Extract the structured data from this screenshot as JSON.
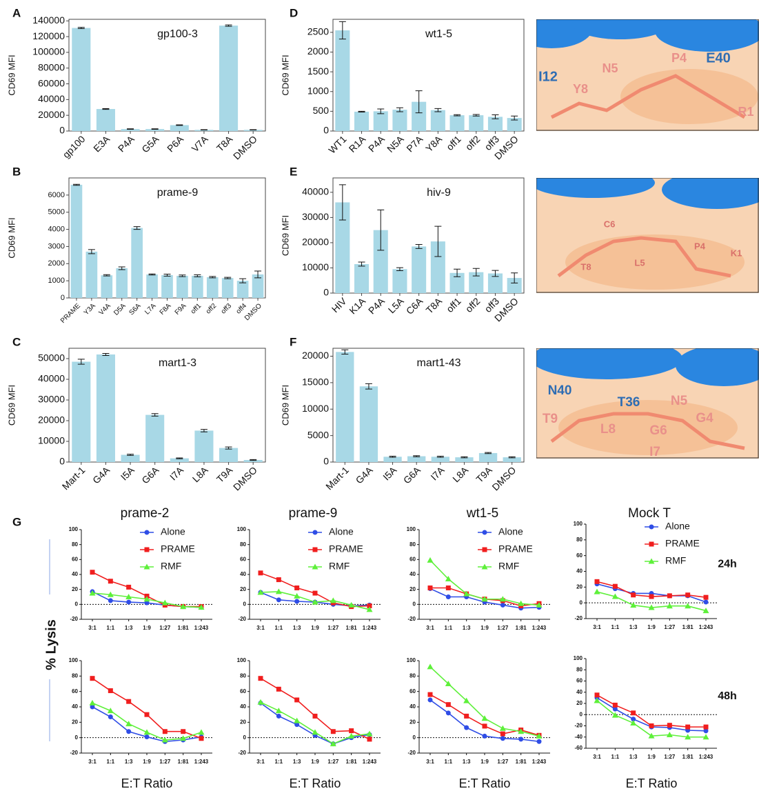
{
  "ylabel": "% Lysis",
  "structures": [
    {
      "labels": [
        {
          "text": "I12",
          "color": "#2f6db3"
        },
        {
          "text": "Y8",
          "color": "#e9908a"
        },
        {
          "text": "N5",
          "color": "#e9908a"
        },
        {
          "text": "P4",
          "color": "#e9908a"
        },
        {
          "text": "E40",
          "color": "#2f6db3"
        },
        {
          "text": "R1",
          "color": "#e9908a"
        }
      ]
    },
    {
      "labels": [
        {
          "text": "C6",
          "color": "#d9706a"
        },
        {
          "text": "P4",
          "color": "#d9706a"
        },
        {
          "text": "T8",
          "color": "#d9706a"
        },
        {
          "text": "L5",
          "color": "#d9706a"
        },
        {
          "text": "K1",
          "color": "#d9706a"
        }
      ]
    },
    {
      "labels": [
        {
          "text": "N40",
          "color": "#2f6db3"
        },
        {
          "text": "T36",
          "color": "#2f6db3"
        },
        {
          "text": "N5",
          "color": "#e9908a"
        },
        {
          "text": "T9",
          "color": "#e9908a"
        },
        {
          "text": "L8",
          "color": "#e9908a"
        },
        {
          "text": "G6",
          "color": "#e9908a"
        },
        {
          "text": "G4",
          "color": "#e9908a"
        },
        {
          "text": "I7",
          "color": "#e9908a"
        }
      ]
    }
  ],
  "chart_data": [
    {
      "type": "bar",
      "panel": "A",
      "title": "gp100-3",
      "ylabel": "CD69 MFI",
      "color": "#a8d8e6",
      "categories": [
        "gp100",
        "E3A",
        "P4A",
        "G5A",
        "P6A",
        "V7A",
        "T8A",
        "DMSO"
      ],
      "values": [
        131000,
        28000,
        2500,
        2500,
        7500,
        1500,
        134000,
        1500
      ],
      "errors": [
        800,
        500,
        300,
        300,
        400,
        200,
        900,
        200
      ],
      "ylim": [
        0,
        142000
      ],
      "yticks": [
        0,
        20000,
        40000,
        60000,
        80000,
        100000,
        120000,
        140000
      ]
    },
    {
      "type": "bar",
      "panel": "B",
      "title": "prame-9",
      "ylabel": "CD69 MFI",
      "color": "#a8d8e6",
      "categories": [
        "PRAME",
        "Y3A",
        "V4A",
        "D5A",
        "S6A",
        "L7A",
        "F8A",
        "F9A",
        "off1",
        "off2",
        "off3",
        "off4",
        "DMSO"
      ],
      "values": [
        6600,
        2700,
        1320,
        1730,
        4080,
        1370,
        1330,
        1290,
        1290,
        1210,
        1160,
        1000,
        1370
      ],
      "errors": [
        30,
        120,
        40,
        80,
        80,
        30,
        60,
        50,
        60,
        40,
        40,
        120,
        200
      ],
      "ylim": [
        0,
        7000
      ],
      "yticks": [
        0,
        1000,
        2000,
        3000,
        4000,
        5000,
        6000
      ]
    },
    {
      "type": "bar",
      "panel": "C",
      "title": "mart1-3",
      "ylabel": "CD69 MFI",
      "color": "#a8d8e6",
      "categories": [
        "Mart-1",
        "G4A",
        "I5A",
        "G6A",
        "I7A",
        "L8A",
        "T9A",
        "DMSO"
      ],
      "values": [
        48500,
        52000,
        3500,
        22800,
        1800,
        15200,
        6800,
        1000
      ],
      "errors": [
        1200,
        500,
        300,
        600,
        200,
        600,
        500,
        200
      ],
      "ylim": [
        0,
        55000
      ],
      "yticks": [
        0,
        10000,
        20000,
        30000,
        40000,
        50000
      ]
    },
    {
      "type": "bar",
      "panel": "D",
      "title": "wt1-5",
      "ylabel": "CD69 MFI",
      "color": "#a8d8e6",
      "categories": [
        "WT1",
        "R1A",
        "P4A",
        "N5A",
        "P7A",
        "Y8A",
        "off1",
        "off2",
        "off3",
        "DMSO"
      ],
      "values": [
        2550,
        490,
        500,
        540,
        740,
        530,
        400,
        400,
        360,
        330
      ],
      "errors": [
        220,
        10,
        60,
        50,
        280,
        40,
        15,
        20,
        50,
        50
      ],
      "ylim": [
        0,
        2830
      ],
      "yticks": [
        0,
        500,
        1000,
        1500,
        2000,
        2500
      ]
    },
    {
      "type": "bar",
      "panel": "E",
      "title": "hiv-9",
      "ylabel": "CD69 MFI",
      "color": "#a8d8e6",
      "categories": [
        "HIV",
        "K1A",
        "P4A",
        "L5A",
        "C6A",
        "T8A",
        "off1",
        "off2",
        "off3",
        "DMSO"
      ],
      "values": [
        36000,
        11500,
        25000,
        9500,
        18500,
        20500,
        8000,
        8300,
        7800,
        6000
      ],
      "errors": [
        7000,
        800,
        8000,
        600,
        800,
        6000,
        1500,
        1500,
        1200,
        2000
      ],
      "ylim": [
        0,
        45700
      ],
      "yticks": [
        0,
        10000,
        20000,
        30000,
        40000
      ]
    },
    {
      "type": "bar",
      "panel": "F",
      "title": "mart1-43",
      "ylabel": "CD69 MFI",
      "color": "#a8d8e6",
      "categories": [
        "Mart-1",
        "G4A",
        "I5A",
        "G6A",
        "I7A",
        "L8A",
        "T9A",
        "DMSO"
      ],
      "values": [
        20800,
        14300,
        1000,
        1100,
        1000,
        900,
        1700,
        900
      ],
      "errors": [
        400,
        500,
        100,
        100,
        100,
        100,
        100,
        100
      ],
      "ylim": [
        0,
        21500
      ],
      "yticks": [
        0,
        5000,
        10000,
        15000,
        20000
      ]
    },
    {
      "type": "line",
      "panel": "G",
      "title": "prame-2",
      "legend": true,
      "categories": [
        "3:1",
        "1:1",
        "1:3",
        "1:9",
        "1:27",
        "1:81",
        "1:243"
      ],
      "ylim": [
        -20,
        100
      ],
      "yticks": [
        -20,
        0,
        20,
        40,
        60,
        80,
        100
      ],
      "series": [
        {
          "name": "Alone",
          "color": "#2f4de6",
          "marker": "circle",
          "values": [
            17,
            5,
            3,
            2,
            -1,
            -3,
            -4
          ]
        },
        {
          "name": "PRAME",
          "color": "#f01e1e",
          "marker": "square",
          "values": [
            43,
            31,
            23,
            11,
            -1,
            -3,
            -3
          ]
        },
        {
          "name": "RMF",
          "color": "#5ef03a",
          "marker": "triangle",
          "values": [
            15,
            13,
            10,
            7,
            2,
            -3,
            -4
          ]
        }
      ]
    },
    {
      "type": "line",
      "title": "prame-9",
      "legend": true,
      "categories": [
        "3:1",
        "1:1",
        "1:3",
        "1:9",
        "1:27",
        "1:81",
        "1:243"
      ],
      "ylim": [
        -20,
        100
      ],
      "yticks": [
        -20,
        0,
        20,
        40,
        60,
        80,
        100
      ],
      "series": [
        {
          "name": "Alone",
          "color": "#2f4de6",
          "marker": "circle",
          "values": [
            16,
            6,
            4,
            3,
            0,
            -2,
            -1
          ]
        },
        {
          "name": "PRAME",
          "color": "#f01e1e",
          "marker": "square",
          "values": [
            42,
            33,
            22,
            15,
            2,
            -3,
            -2
          ]
        },
        {
          "name": "RMF",
          "color": "#5ef03a",
          "marker": "triangle",
          "values": [
            16,
            17,
            11,
            3,
            5,
            -1,
            -7
          ]
        }
      ]
    },
    {
      "type": "line",
      "title": "wt1-5",
      "legend": true,
      "categories": [
        "3:1",
        "1:1",
        "1:3",
        "1:9",
        "1:27",
        "1:81",
        "1:243"
      ],
      "ylim": [
        -20,
        100
      ],
      "yticks": [
        -20,
        0,
        20,
        40,
        60,
        80,
        100
      ],
      "series": [
        {
          "name": "Alone",
          "color": "#2f4de6",
          "marker": "circle",
          "values": [
            21,
            10,
            10,
            3,
            -1,
            -5,
            -4
          ]
        },
        {
          "name": "PRAME",
          "color": "#f01e1e",
          "marker": "square",
          "values": [
            22,
            22,
            14,
            7,
            5,
            -2,
            1
          ]
        },
        {
          "name": "RMF",
          "color": "#5ef03a",
          "marker": "triangle",
          "values": [
            59,
            34,
            14,
            7,
            7,
            1,
            -1
          ]
        }
      ]
    },
    {
      "type": "line",
      "title": "Mock T",
      "legend": true,
      "row_label": "24h",
      "categories": [
        "3:1",
        "1:1",
        "1:3",
        "1:9",
        "1:27",
        "1:81",
        "1:243"
      ],
      "ylim": [
        -20,
        100
      ],
      "yticks": [
        -20,
        0,
        20,
        40,
        60,
        80,
        100
      ],
      "series": [
        {
          "name": "Alone",
          "color": "#2f4de6",
          "marker": "circle",
          "values": [
            24,
            18,
            12,
            12,
            9,
            9,
            1
          ]
        },
        {
          "name": "PRAME",
          "color": "#f01e1e",
          "marker": "square",
          "values": [
            27,
            21,
            10,
            8,
            9,
            10,
            7
          ]
        },
        {
          "name": "RMF",
          "color": "#5ef03a",
          "marker": "triangle",
          "values": [
            14,
            8,
            -3,
            -6,
            -4,
            -4,
            -10
          ]
        }
      ]
    },
    {
      "type": "line",
      "x_label": "E:T Ratio",
      "categories": [
        "3:1",
        "1:1",
        "1:3",
        "1:9",
        "1:27",
        "1:81",
        "1:243"
      ],
      "ylim": [
        -20,
        100
      ],
      "yticks": [
        -20,
        0,
        20,
        40,
        60,
        80,
        100
      ],
      "series": [
        {
          "name": "Alone",
          "color": "#2f4de6",
          "marker": "circle",
          "values": [
            40,
            27,
            8,
            1,
            -5,
            -3,
            1
          ]
        },
        {
          "name": "PRAME",
          "color": "#f01e1e",
          "marker": "square",
          "values": [
            77,
            61,
            47,
            30,
            8,
            8,
            -1
          ]
        },
        {
          "name": "RMF",
          "color": "#5ef03a",
          "marker": "triangle",
          "values": [
            45,
            35,
            18,
            7,
            -3,
            -1,
            7
          ]
        }
      ]
    },
    {
      "type": "line",
      "x_label": "E:T Ratio",
      "categories": [
        "3:1",
        "1:1",
        "1:3",
        "1:9",
        "1:27",
        "1:81",
        "1:243"
      ],
      "ylim": [
        -20,
        100
      ],
      "yticks": [
        -20,
        0,
        20,
        40,
        60,
        80,
        100
      ],
      "series": [
        {
          "name": "Alone",
          "color": "#2f4de6",
          "marker": "circle",
          "values": [
            45,
            28,
            17,
            3,
            -8,
            0,
            4
          ]
        },
        {
          "name": "PRAME",
          "color": "#f01e1e",
          "marker": "square",
          "values": [
            77,
            63,
            49,
            28,
            8,
            9,
            -2
          ]
        },
        {
          "name": "RMF",
          "color": "#5ef03a",
          "marker": "triangle",
          "values": [
            46,
            35,
            22,
            7,
            -8,
            2,
            5
          ]
        }
      ]
    },
    {
      "type": "line",
      "x_label": "E:T Ratio",
      "categories": [
        "3:1",
        "1:1",
        "1:3",
        "1:9",
        "1:27",
        "1:81",
        "1:243"
      ],
      "ylim": [
        -20,
        100
      ],
      "yticks": [
        -20,
        0,
        20,
        40,
        60,
        80,
        100
      ],
      "series": [
        {
          "name": "Alone",
          "color": "#2f4de6",
          "marker": "circle",
          "values": [
            49,
            32,
            13,
            2,
            -1,
            -2,
            -5
          ]
        },
        {
          "name": "PRAME",
          "color": "#f01e1e",
          "marker": "square",
          "values": [
            56,
            43,
            28,
            15,
            5,
            10,
            3
          ]
        },
        {
          "name": "RMF",
          "color": "#5ef03a",
          "marker": "triangle",
          "values": [
            92,
            70,
            48,
            25,
            12,
            8,
            2
          ]
        }
      ]
    },
    {
      "type": "line",
      "x_label": "E:T Ratio",
      "row_label": "48h",
      "categories": [
        "3:1",
        "1:1",
        "1:3",
        "1:9",
        "1:27",
        "1:81",
        "1:243"
      ],
      "ylim": [
        -60,
        100
      ],
      "yticks": [
        -60,
        -40,
        -20,
        0,
        20,
        40,
        60,
        80,
        100
      ],
      "series": [
        {
          "name": "Alone",
          "color": "#2f4de6",
          "marker": "circle",
          "values": [
            30,
            10,
            -8,
            -22,
            -23,
            -28,
            -29
          ]
        },
        {
          "name": "PRAME",
          "color": "#f01e1e",
          "marker": "square",
          "values": [
            35,
            17,
            3,
            -20,
            -19,
            -22,
            -22
          ]
        },
        {
          "name": "RMF",
          "color": "#5ef03a",
          "marker": "triangle",
          "values": [
            25,
            -1,
            -15,
            -38,
            -36,
            -40,
            -40
          ]
        }
      ]
    }
  ]
}
